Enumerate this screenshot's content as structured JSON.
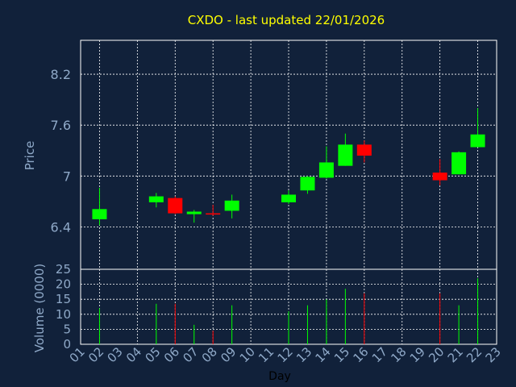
{
  "chart_data": {
    "type": "candlestick",
    "title": "CXDO - last updated 22/01/2026",
    "xlabel": "Day",
    "price_panel": {
      "ylabel": "Price",
      "ylim": [
        5.9,
        8.6
      ],
      "yticks": [
        "6.4",
        "7",
        "7.6",
        "8.2"
      ],
      "grid": true
    },
    "volume_panel": {
      "ylabel": "Volume (0000)",
      "ylim": [
        0,
        25
      ],
      "yticks": [
        "0",
        "5",
        "10",
        "15",
        "20",
        "25"
      ],
      "grid": true
    },
    "x_ticks": [
      "01",
      "02",
      "03",
      "04",
      "05",
      "06",
      "07",
      "08",
      "09",
      "10",
      "11",
      "12",
      "13",
      "14",
      "15",
      "16",
      "17",
      "18",
      "19",
      "20",
      "21",
      "22",
      "23"
    ],
    "candles": [
      {
        "day": "02",
        "open": 6.49,
        "high": 6.86,
        "low": 6.42,
        "close": 6.61,
        "volume": 12
      },
      {
        "day": "05",
        "open": 6.69,
        "high": 6.8,
        "low": 6.63,
        "close": 6.76,
        "volume": 13.5
      },
      {
        "day": "06",
        "open": 6.74,
        "high": 6.76,
        "low": 6.55,
        "close": 6.56,
        "volume": 13.5
      },
      {
        "day": "07",
        "open": 6.55,
        "high": 6.6,
        "low": 6.45,
        "close": 6.58,
        "volume": 6.5
      },
      {
        "day": "08",
        "open": 6.56,
        "high": 6.66,
        "low": 6.53,
        "close": 6.55,
        "volume": 4.5
      },
      {
        "day": "09",
        "open": 6.59,
        "high": 6.78,
        "low": 6.5,
        "close": 6.71,
        "volume": 13
      },
      {
        "day": "12",
        "open": 6.69,
        "high": 6.83,
        "low": 6.67,
        "close": 6.78,
        "volume": 11
      },
      {
        "day": "13",
        "open": 6.83,
        "high": 7.0,
        "low": 6.79,
        "close": 6.99,
        "volume": 13
      },
      {
        "day": "14",
        "open": 6.98,
        "high": 7.35,
        "low": 6.97,
        "close": 7.16,
        "volume": 15
      },
      {
        "day": "15",
        "open": 7.12,
        "high": 7.5,
        "low": 7.12,
        "close": 7.37,
        "volume": 18.5
      },
      {
        "day": "16",
        "open": 7.37,
        "high": 7.42,
        "low": 7.16,
        "close": 7.24,
        "volume": 17
      },
      {
        "day": "20",
        "open": 7.04,
        "high": 7.2,
        "low": 6.89,
        "close": 6.95,
        "volume": 17
      },
      {
        "day": "21",
        "open": 7.02,
        "high": 7.29,
        "low": 7.02,
        "close": 7.28,
        "volume": 13
      },
      {
        "day": "22",
        "open": 7.34,
        "high": 7.8,
        "low": 7.34,
        "close": 7.49,
        "volume": 22
      }
    ],
    "colors": {
      "background": "#11213a",
      "up": "#00ff00",
      "down": "#ff0000",
      "grid": "#ffffff",
      "axis_text": "#8fa9c8",
      "title": "#ffff00",
      "xlabel": "#000000"
    }
  }
}
